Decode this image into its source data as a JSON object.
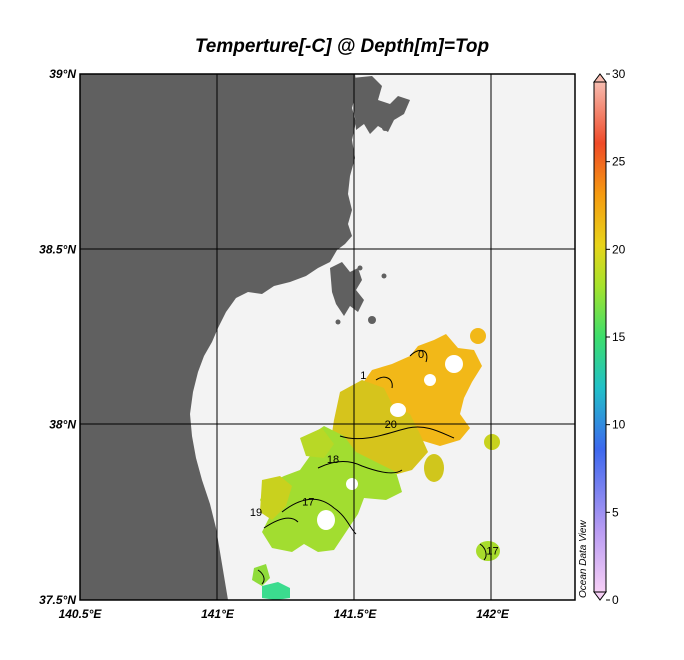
{
  "chart_data": {
    "type": "heatmap",
    "title": "Temperture[-C] @ Depth[m]=Top",
    "xlim": [
      140.5,
      142.3
    ],
    "ylim": [
      37.5,
      39.0
    ],
    "x_ticks": [
      {
        "value": 140.5,
        "label": "140.5°E"
      },
      {
        "value": 141.0,
        "label": "141°E"
      },
      {
        "value": 141.5,
        "label": "141.5°E"
      },
      {
        "value": 142.0,
        "label": "142°E"
      }
    ],
    "y_ticks": [
      {
        "value": 39.0,
        "label": "39°N"
      },
      {
        "value": 38.5,
        "label": "38.5°N"
      },
      {
        "value": 38.0,
        "label": "38°N"
      },
      {
        "value": 37.5,
        "label": "37.5°N"
      }
    ],
    "grid": true,
    "colorbar": {
      "min": 0,
      "max": 30,
      "ticks": [
        0,
        5,
        10,
        15,
        20,
        25,
        30
      ],
      "tick_labels": [
        "0",
        "5",
        "10",
        "15",
        "20",
        "25",
        "30"
      ],
      "placement": "right"
    },
    "contour_labels": [
      {
        "text": "20",
        "lon": 141.63,
        "lat": 37.99
      },
      {
        "text": "18",
        "lon": 141.42,
        "lat": 37.89
      },
      {
        "text": "17",
        "lon": 141.33,
        "lat": 37.77
      },
      {
        "text": "19",
        "lon": 141.14,
        "lat": 37.74
      },
      {
        "text": "17",
        "lon": 142.0,
        "lat": 37.63
      },
      {
        "text": "1",
        "lon": 141.53,
        "lat": 38.13
      },
      {
        "text": "0",
        "lon": 141.74,
        "lat": 38.19
      }
    ],
    "watermark": "Ocean Data View",
    "colors": {
      "land": "#606060",
      "ocean": "#f3f3f3",
      "warm": "#f4b414",
      "mid": "#d0d020",
      "green": "#9be332",
      "cool": "#39dc8c"
    }
  }
}
